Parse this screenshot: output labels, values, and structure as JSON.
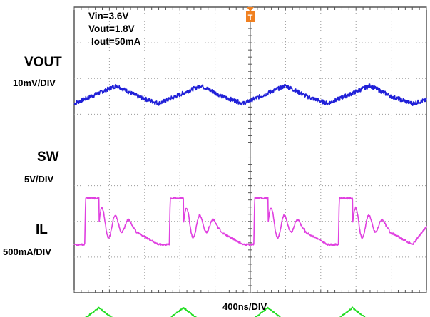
{
  "annotations": {
    "vin": "Vin=3.6V",
    "vout": "Vout=1.8V",
    "iout": "Iout=50mA"
  },
  "channels": [
    {
      "name": "VOUT",
      "scale": "10mV/DIV",
      "color": "#2020d8"
    },
    {
      "name": "SW",
      "scale": "5V/DIV",
      "color": "#e040e0"
    },
    {
      "name": "IL",
      "scale": "500mA/DIV",
      "color": "#22dd22"
    }
  ],
  "timebase": "400ns/DIV",
  "trigger": {
    "marker": "T",
    "color": "#f08020"
  },
  "chart_data": {
    "type": "line",
    "title": "",
    "xlabel": "400ns/DIV",
    "x_divisions": 10,
    "y_divisions": 8,
    "time_per_div_ns": 400,
    "x_range_ns": [
      0,
      4000
    ],
    "grid": true,
    "switching_period_ns": 960,
    "series": [
      {
        "name": "VOUT",
        "scale": "10mV/DIV",
        "waveform": "ripple",
        "x_ns": [
          0,
          240,
          480,
          720,
          960,
          1200,
          1440,
          1680,
          1920,
          2160,
          2400,
          2640,
          2880,
          3120,
          3360,
          3600,
          3840,
          4000
        ],
        "y_div": [
          -0.2,
          0.05,
          0.3,
          0.0,
          -0.2,
          0.05,
          0.3,
          0.0,
          -0.2,
          0.05,
          0.3,
          0.0,
          -0.2,
          0.05,
          0.3,
          0.0,
          -0.2,
          -0.1
        ]
      },
      {
        "name": "SW",
        "scale": "5V/DIV",
        "waveform": "switching",
        "x_ns": [
          0,
          120,
          130,
          280,
          600,
          960,
          1080,
          1090,
          1240,
          1560,
          1920,
          2040,
          2050,
          2200,
          2520,
          2880,
          3000,
          3010,
          3160,
          3480,
          3840,
          4000
        ],
        "y_div": [
          -0.5,
          -0.5,
          0.8,
          0.8,
          0.0,
          -0.5,
          -0.5,
          0.8,
          0.8,
          0.0,
          -0.5,
          -0.5,
          0.8,
          0.8,
          0.0,
          -0.5,
          -0.5,
          0.8,
          0.8,
          0.0,
          -0.5,
          0.0
        ]
      },
      {
        "name": "IL",
        "scale": "500mA/DIV",
        "waveform": "triangle",
        "x_ns": [
          0,
          120,
          280,
          440,
          960,
          1080,
          1240,
          1400,
          1920,
          2040,
          2200,
          2360,
          2880,
          3000,
          3160,
          3320,
          3840,
          4000
        ],
        "y_div": [
          -0.0,
          0.0,
          0.3,
          0.0,
          0.0,
          0.0,
          0.3,
          0.0,
          0.0,
          0.0,
          0.3,
          0.0,
          0.0,
          0.0,
          0.3,
          0.0,
          0.0,
          0.0
        ]
      }
    ]
  }
}
